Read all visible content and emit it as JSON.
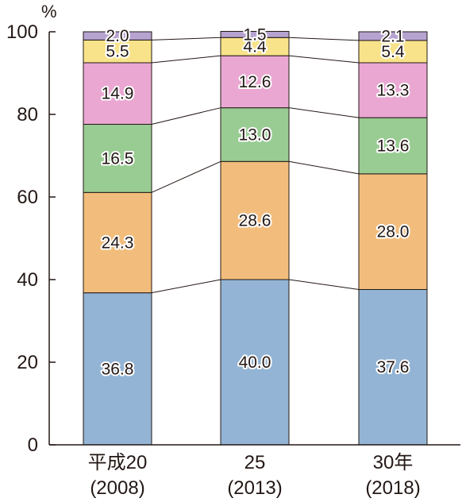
{
  "chart_data": {
    "type": "bar",
    "stacked": true,
    "unit": "%",
    "ylim": [
      0,
      100
    ],
    "yticks": [
      0,
      20,
      40,
      60,
      80,
      100
    ],
    "grid": false,
    "categories": [
      {
        "line1": "平成20",
        "line2": "(2008)"
      },
      {
        "line1": "25",
        "line2": "(2013)"
      },
      {
        "line1": "30年",
        "line2": "(2018)"
      }
    ],
    "series": [
      {
        "values": [
          36.8,
          40.0,
          37.6
        ],
        "labels": [
          "36.8",
          "40.0",
          "37.6"
        ],
        "color": "#93b4d4"
      },
      {
        "values": [
          24.3,
          28.6,
          28.0
        ],
        "labels": [
          "24.3",
          "28.6",
          "28.0"
        ],
        "color": "#f2bd7c"
      },
      {
        "values": [
          16.5,
          13.0,
          13.6
        ],
        "labels": [
          "16.5",
          "13.0",
          "13.6"
        ],
        "color": "#99cc93"
      },
      {
        "values": [
          14.9,
          12.6,
          13.3
        ],
        "labels": [
          "14.9",
          "12.6",
          "13.3"
        ],
        "color": "#eaa7d2"
      },
      {
        "values": [
          5.5,
          4.4,
          5.4
        ],
        "labels": [
          "5.5",
          "4.4",
          "5.4"
        ],
        "color": "#f8e38a"
      },
      {
        "values": [
          2.0,
          1.5,
          2.1
        ],
        "labels": [
          "2.0",
          "1.5",
          "2.1"
        ],
        "color": "#b7a3d0"
      }
    ]
  }
}
